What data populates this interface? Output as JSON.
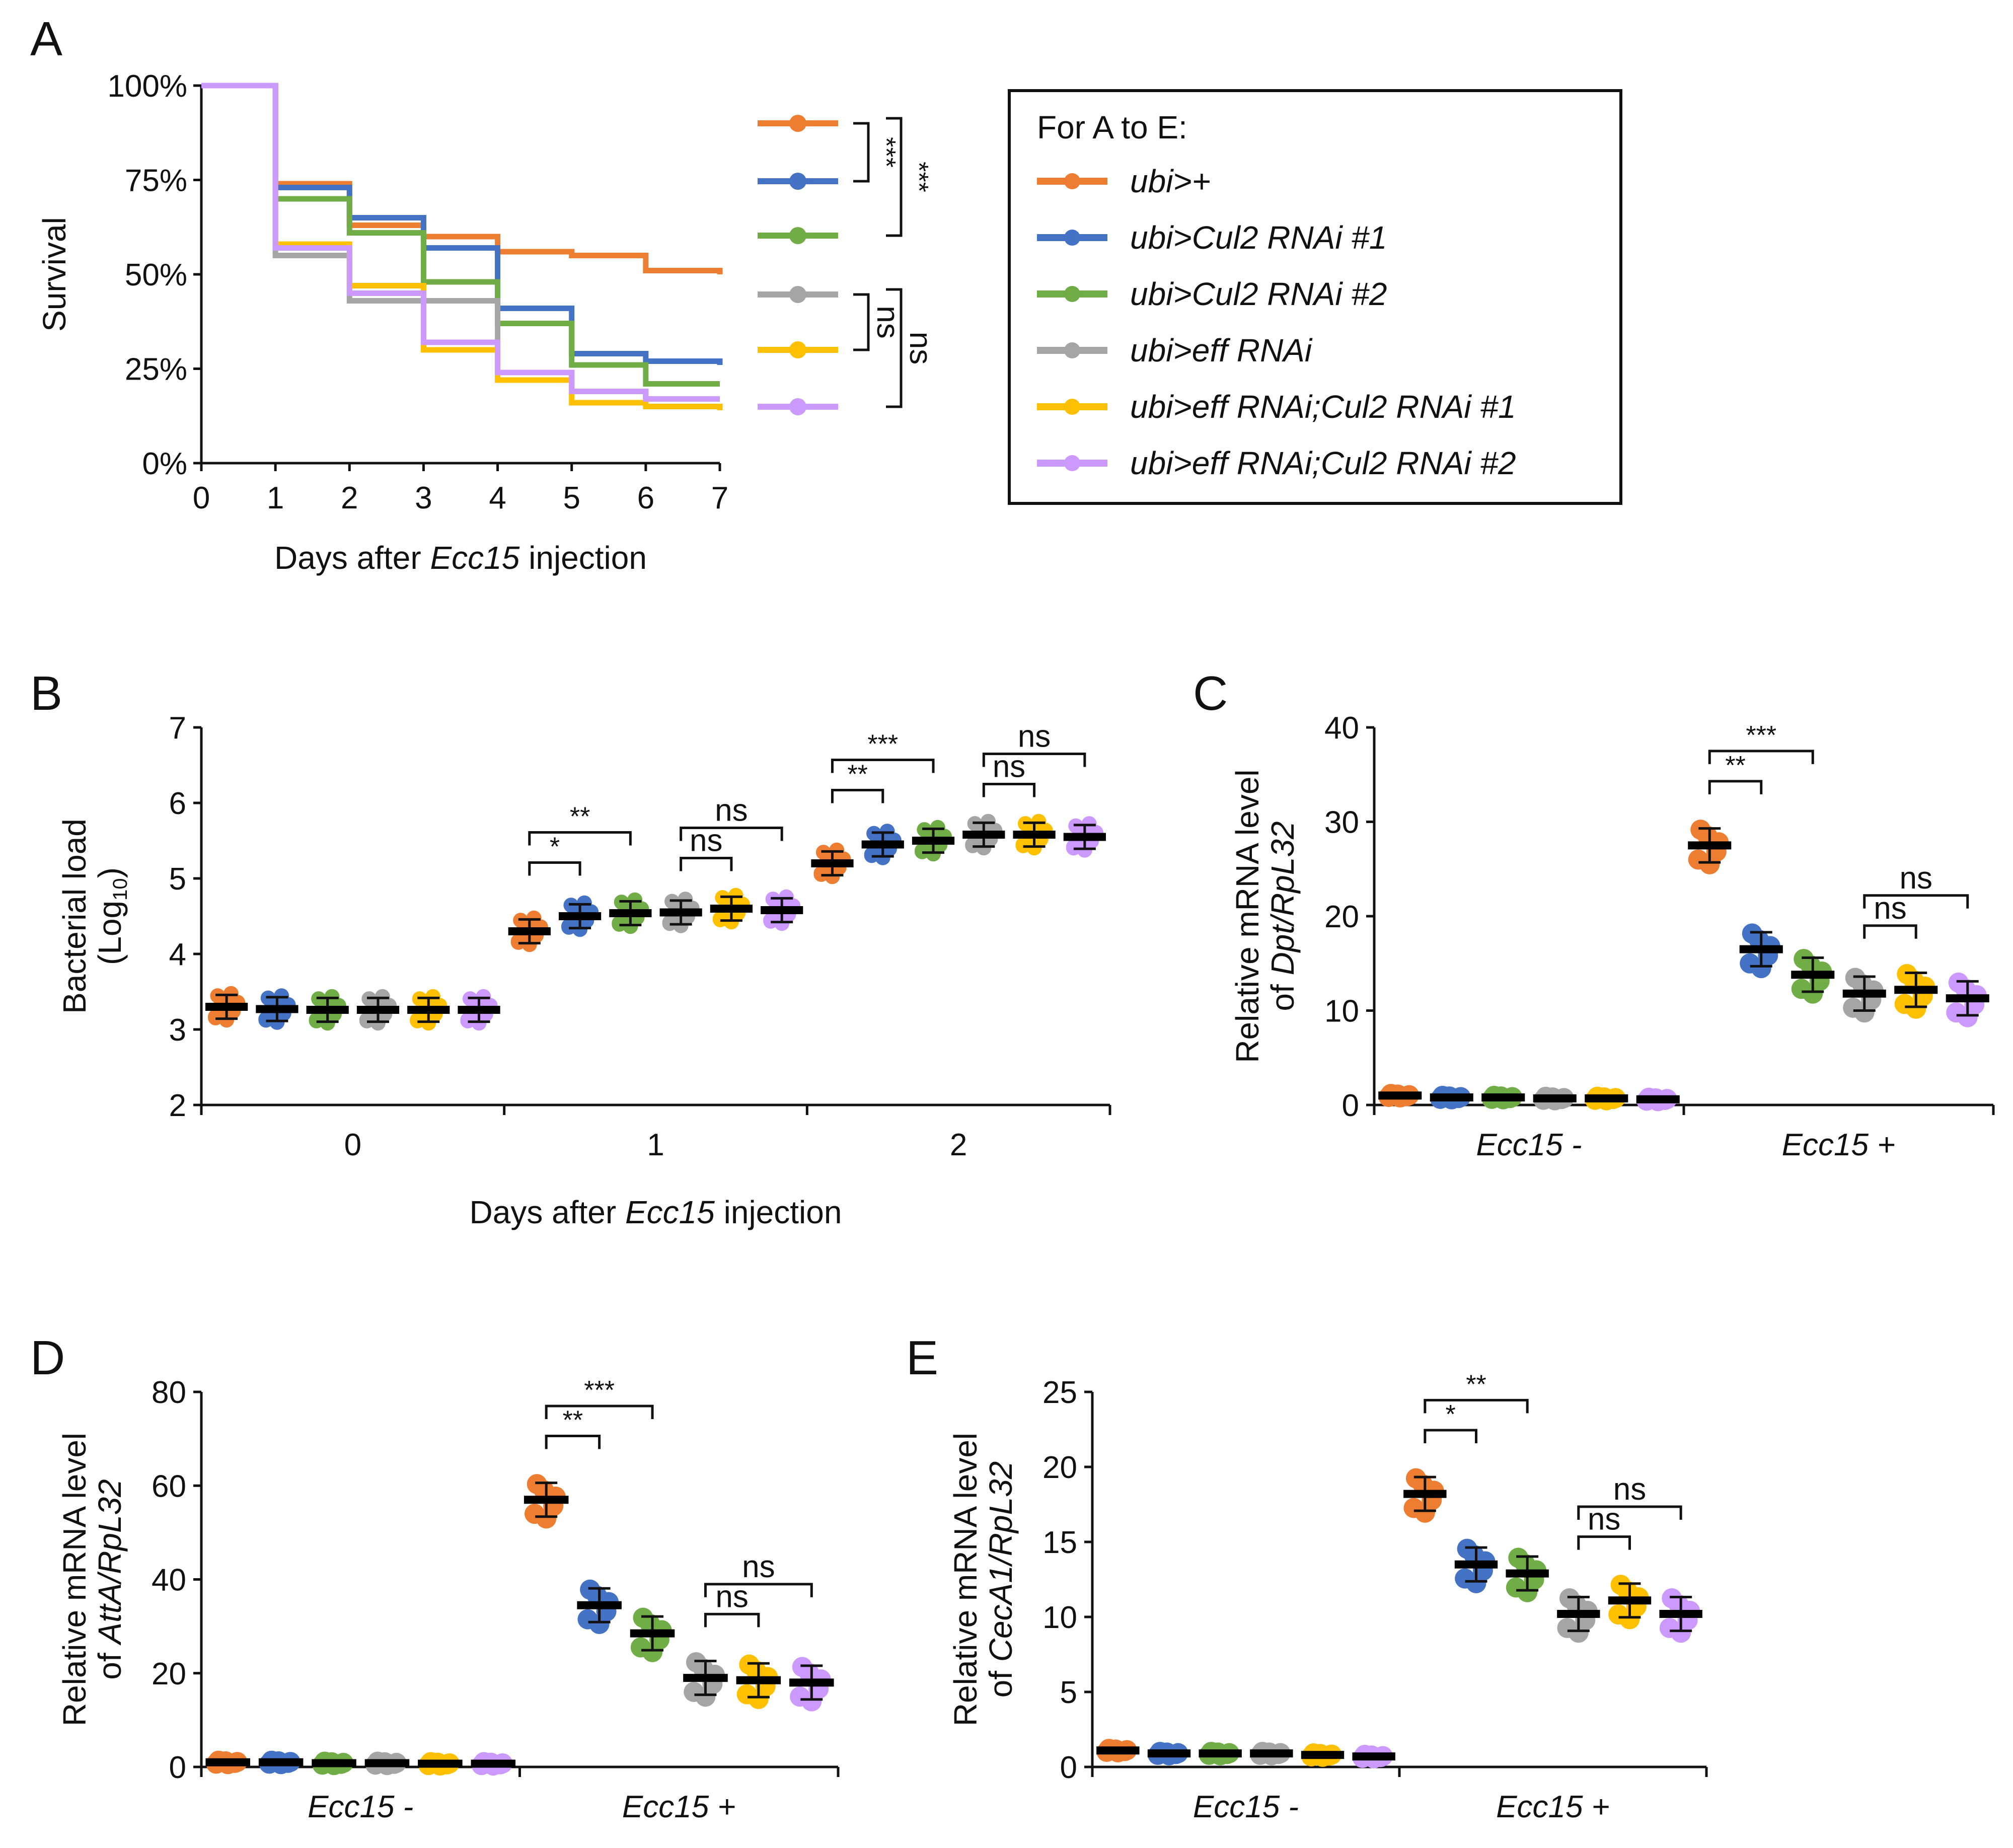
{
  "figure": {
    "legend": {
      "title": "For A to E:",
      "entries": [
        {
          "label": "ubi>+",
          "color": "#ed7d31"
        },
        {
          "label": "ubi>Cul2 RNAi #1",
          "color": "#4472c4"
        },
        {
          "label": "ubi>Cul2 RNAi #2",
          "color": "#70ad47"
        },
        {
          "label": "ubi>eff RNAi",
          "color": "#a5a5a5"
        },
        {
          "label": "ubi>eff RNAi;Cul2 RNAi #1",
          "color": "#ffc000"
        },
        {
          "label": "ubi>eff RNAi;Cul2 RNAi #2",
          "color": "#cc99ff"
        }
      ]
    }
  },
  "chart_data": [
    {
      "panel": "A",
      "type": "line",
      "title": "",
      "xlabel_prefix": "Days after ",
      "xlabel_italic": "Ecc15",
      "xlabel_suffix": " injection",
      "ylabel": "Survival",
      "x": [
        0,
        1,
        2,
        3,
        4,
        5,
        6,
        7
      ],
      "xlim": [
        0,
        7
      ],
      "ylim": [
        0,
        100
      ],
      "x_ticks": [
        "0",
        "1",
        "2",
        "3",
        "4",
        "5",
        "6",
        "7"
      ],
      "y_ticks": [
        "0%",
        "25%",
        "50%",
        "75%",
        "100%"
      ],
      "series": [
        {
          "name": "ubi>+",
          "values": [
            100,
            74,
            63,
            60,
            56,
            55,
            51,
            50
          ]
        },
        {
          "name": "ubi>Cul2 RNAi #1",
          "values": [
            100,
            73,
            65,
            57,
            41,
            29,
            27,
            26
          ]
        },
        {
          "name": "ubi>Cul2 RNAi #2",
          "values": [
            100,
            70,
            61,
            48,
            37,
            26,
            21,
            21
          ]
        },
        {
          "name": "ubi>eff RNAi",
          "values": [
            100,
            55,
            43,
            43,
            24,
            19,
            17,
            17
          ]
        },
        {
          "name": "ubi>eff RNAi;Cul2 RNAi #1",
          "values": [
            100,
            58,
            47,
            30,
            22,
            16,
            15,
            14
          ]
        },
        {
          "name": "ubi>eff RNAi;Cul2 RNAi #2",
          "values": [
            100,
            57,
            45,
            32,
            24,
            19,
            17,
            17
          ]
        }
      ],
      "significance": [
        {
          "between": [
            0,
            1
          ],
          "label": "***"
        },
        {
          "between": [
            0,
            2
          ],
          "label": "***"
        },
        {
          "between": [
            3,
            4
          ],
          "label": "ns"
        },
        {
          "between": [
            3,
            5
          ],
          "label": "ns"
        }
      ]
    },
    {
      "panel": "B",
      "type": "scatter",
      "title": "",
      "xlabel_prefix": "Days after ",
      "xlabel_italic": "Ecc15",
      "xlabel_suffix": " injection",
      "ylabel_line1": "Bacterial load",
      "ylabel_line2_prefix": "(Log",
      "ylabel_line2_sub": "10",
      "ylabel_line2_suffix": ")",
      "categories": [
        "0",
        "1",
        "2"
      ],
      "ylim": [
        2,
        7
      ],
      "y_ticks": [
        "2",
        "3",
        "4",
        "5",
        "6",
        "7"
      ],
      "group_means": [
        [
          3.3,
          3.27,
          3.26,
          3.26,
          3.26,
          3.26
        ],
        [
          4.3,
          4.5,
          4.54,
          4.55,
          4.6,
          4.58
        ],
        [
          5.2,
          5.45,
          5.5,
          5.58,
          5.58,
          5.55
        ]
      ],
      "significance": [
        {
          "group": 1,
          "between": [
            0,
            1
          ],
          "label": "*"
        },
        {
          "group": 1,
          "between": [
            0,
            2
          ],
          "label": "**"
        },
        {
          "group": 1,
          "between": [
            3,
            4
          ],
          "label": "ns"
        },
        {
          "group": 1,
          "between": [
            3,
            5
          ],
          "label": "ns"
        },
        {
          "group": 2,
          "between": [
            0,
            1
          ],
          "label": "**"
        },
        {
          "group": 2,
          "between": [
            0,
            2
          ],
          "label": "***"
        },
        {
          "group": 2,
          "between": [
            3,
            4
          ],
          "label": "ns"
        },
        {
          "group": 2,
          "between": [
            3,
            5
          ],
          "label": "ns"
        }
      ]
    },
    {
      "panel": "C",
      "type": "scatter",
      "title": "",
      "ylabel_line1": "Relative mRNA level",
      "ylabel_line2_prefix": "of ",
      "ylabel_line2_italic": "Dpt/RpL32",
      "categories": [
        "Ecc15 -",
        "Ecc15 +"
      ],
      "ylim": [
        0,
        40
      ],
      "y_ticks": [
        "0",
        "10",
        "20",
        "30",
        "40"
      ],
      "group_means": [
        [
          1.0,
          0.8,
          0.8,
          0.7,
          0.7,
          0.6
        ],
        [
          27.5,
          16.5,
          13.8,
          11.8,
          12.2,
          11.3
        ]
      ],
      "significance": [
        {
          "group": 1,
          "between": [
            0,
            1
          ],
          "label": "**"
        },
        {
          "group": 1,
          "between": [
            0,
            2
          ],
          "label": "***"
        },
        {
          "group": 1,
          "between": [
            3,
            4
          ],
          "label": "ns"
        },
        {
          "group": 1,
          "between": [
            3,
            5
          ],
          "label": "ns"
        }
      ]
    },
    {
      "panel": "D",
      "type": "scatter",
      "title": "",
      "ylabel_line1": "Relative mRNA level",
      "ylabel_line2_prefix": "of ",
      "ylabel_line2_italic": "AttA/RpL32",
      "categories": [
        "Ecc15 -",
        "Ecc15 +"
      ],
      "ylim": [
        0,
        80
      ],
      "y_ticks": [
        "0",
        "20",
        "40",
        "60",
        "80"
      ],
      "group_means": [
        [
          1.0,
          1.0,
          0.8,
          0.8,
          0.7,
          0.7
        ],
        [
          57,
          34.5,
          28.5,
          19,
          18.5,
          18
        ]
      ],
      "significance": [
        {
          "group": 1,
          "between": [
            0,
            1
          ],
          "label": "**"
        },
        {
          "group": 1,
          "between": [
            0,
            2
          ],
          "label": "***"
        },
        {
          "group": 1,
          "between": [
            3,
            4
          ],
          "label": "ns"
        },
        {
          "group": 1,
          "between": [
            3,
            5
          ],
          "label": "ns"
        }
      ]
    },
    {
      "panel": "E",
      "type": "scatter",
      "title": "",
      "ylabel_line1": "Relative mRNA level",
      "ylabel_line2_prefix": "of ",
      "ylabel_line2_italic": "CecA1/RpL32",
      "categories": [
        "Ecc15 -",
        "Ecc15 +"
      ],
      "ylim": [
        0,
        25
      ],
      "y_ticks": [
        "0",
        "5",
        "10",
        "15",
        "20",
        "25"
      ],
      "group_means": [
        [
          1.1,
          0.9,
          0.9,
          0.9,
          0.8,
          0.7
        ],
        [
          18.2,
          13.5,
          12.9,
          10.2,
          11.1,
          10.2
        ]
      ],
      "significance": [
        {
          "group": 1,
          "between": [
            0,
            1
          ],
          "label": "*"
        },
        {
          "group": 1,
          "between": [
            0,
            2
          ],
          "label": "**"
        },
        {
          "group": 1,
          "between": [
            3,
            4
          ],
          "label": "ns"
        },
        {
          "group": 1,
          "between": [
            3,
            5
          ],
          "label": "ns"
        }
      ]
    }
  ]
}
